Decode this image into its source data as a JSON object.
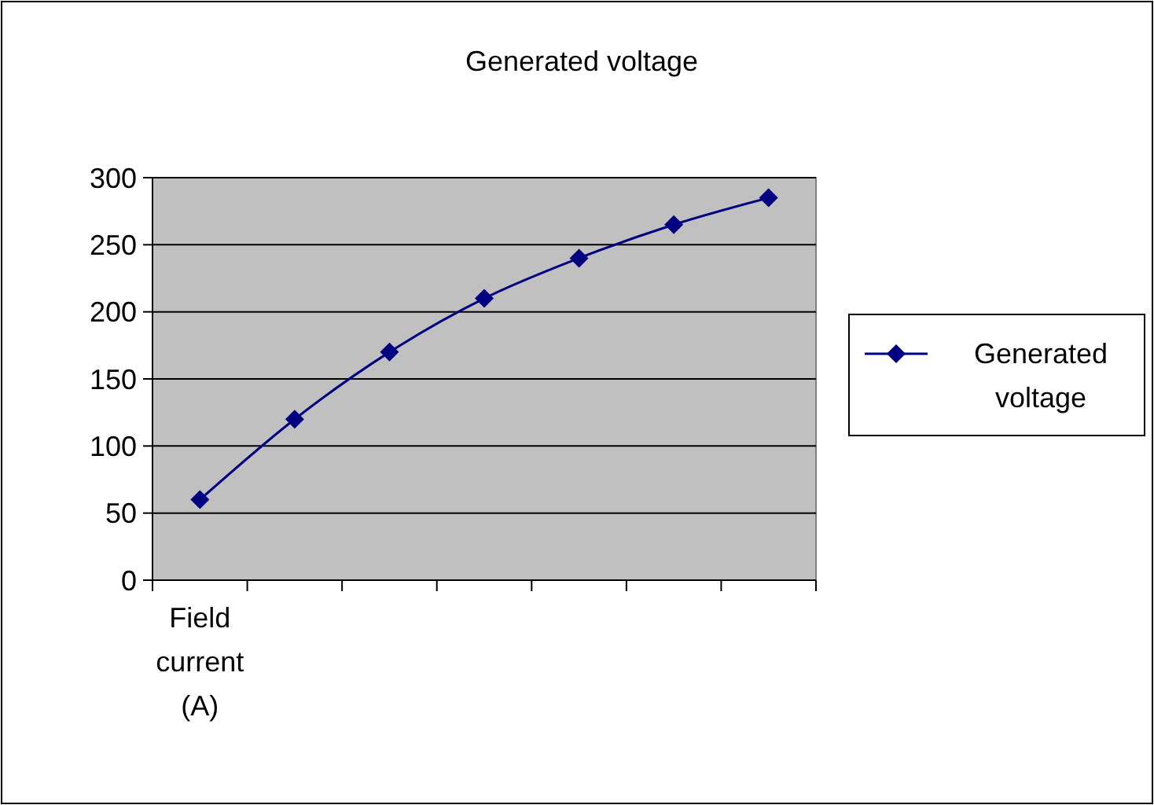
{
  "chart_data": {
    "type": "line",
    "title": "Generated voltage",
    "categories": [
      "Field current (A)",
      null,
      null,
      null,
      null,
      null,
      null
    ],
    "series": [
      {
        "name": "Generated voltage",
        "color": "#000080",
        "values": [
          60,
          120,
          170,
          210,
          240,
          265,
          285
        ]
      }
    ],
    "ylim": [
      0,
      300
    ],
    "yticks": [
      0,
      50,
      100,
      150,
      200,
      250,
      300
    ],
    "grid": "y",
    "legend": "right",
    "marker": "diamond",
    "line_style": "solid"
  }
}
